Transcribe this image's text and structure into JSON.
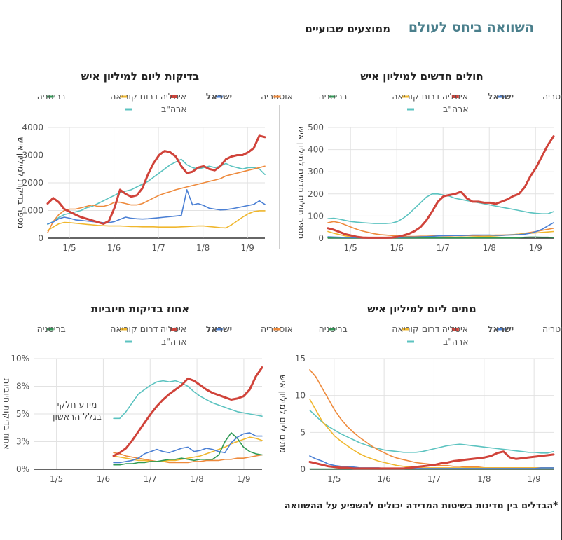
{
  "page": {
    "title": "השוואה ביחס לעולם",
    "subtitle": "ממוצעים שבועיים",
    "footnote": "*הבדלים בין מדינות בשיטות המדידה יכולים להשפיע על ההשוואה"
  },
  "colors": {
    "austria": "#4a7fd4",
    "israel": "#d0433a",
    "italy": "#f0b72e",
    "korea": "#2f9a55",
    "britain": "#ee8a3c",
    "usa": "#5cc3c0",
    "grid": "#e2e2e2",
    "axis": "#333333"
  },
  "chart_data": [
    {
      "id": "tests",
      "type": "line",
      "title": "בדיקות ליום למיליון איש",
      "ylabel": "מספר בדיקות למיליון איש",
      "ylim": [
        0,
        4000
      ],
      "yticks": [
        "0",
        "1000",
        "2000",
        "3000",
        "4000"
      ],
      "xticks": [
        "1/5",
        "1/6",
        "1/7",
        "1/8",
        "1/9"
      ],
      "legend": [
        "אוסטריה",
        "ישראל",
        "איטליה",
        "דרום קוריאה",
        "בריטניה",
        "ארה\"ב"
      ],
      "series": [
        {
          "name": "אוסטריה",
          "key": "austria",
          "values": [
            520,
            580,
            700,
            760,
            720,
            660,
            640,
            620,
            600,
            580,
            560,
            560,
            600,
            680,
            760,
            720,
            700,
            690,
            700,
            720,
            740,
            760,
            780,
            800,
            820,
            1750,
            1200,
            1250,
            1180,
            1080,
            1050,
            1020,
            1030,
            1060,
            1100,
            1140,
            1180,
            1220,
            1350,
            1220
          ]
        },
        {
          "name": "ישראל",
          "key": "israel",
          "values": [
            1250,
            1450,
            1300,
            1050,
            950,
            850,
            760,
            700,
            640,
            580,
            520,
            620,
            1100,
            1750,
            1600,
            1500,
            1550,
            1800,
            2300,
            2700,
            3000,
            3150,
            3100,
            2950,
            2600,
            2350,
            2400,
            2550,
            2600,
            2500,
            2450,
            2600,
            2850,
            2950,
            3000,
            3000,
            3100,
            3250,
            3700,
            3650
          ]
        },
        {
          "name": "איטליה",
          "key": "italy",
          "values": [
            280,
            400,
            520,
            570,
            560,
            540,
            520,
            500,
            480,
            460,
            450,
            440,
            440,
            440,
            430,
            420,
            420,
            410,
            410,
            410,
            400,
            400,
            400,
            400,
            410,
            420,
            430,
            440,
            440,
            420,
            400,
            380,
            370,
            480,
            620,
            760,
            880,
            960,
            990,
            990
          ]
        },
        {
          "name": "דרום קוריאה",
          "key": "korea",
          "values": []
        },
        {
          "name": "בריטניה",
          "key": "britain",
          "values": [
            200,
            600,
            850,
            1000,
            1050,
            1050,
            1100,
            1150,
            1200,
            1150,
            1150,
            1200,
            1300,
            1300,
            1250,
            1200,
            1200,
            1250,
            1350,
            1450,
            1550,
            1620,
            1680,
            1750,
            1800,
            1850,
            1900,
            1950,
            2000,
            2050,
            2100,
            2150,
            2250,
            2300,
            2350,
            2400,
            2450,
            2500,
            2550,
            2600
          ]
        },
        {
          "name": "ארה\"ב",
          "key": "usa",
          "values": [
            500,
            600,
            750,
            850,
            900,
            950,
            1000,
            1100,
            1150,
            1250,
            1350,
            1450,
            1550,
            1650,
            1700,
            1750,
            1850,
            1950,
            2050,
            2200,
            2350,
            2500,
            2650,
            2750,
            2850,
            2650,
            2550,
            2500,
            2550,
            2600,
            2550,
            2600,
            2700,
            2600,
            2550,
            2500,
            2550,
            2550,
            2500,
            2300
          ]
        }
      ]
    },
    {
      "id": "cases",
      "type": "line",
      "title": "חולים חדשים למיליון איש",
      "ylabel": "מספר חולים חדשים למיליון איש",
      "ylim": [
        0,
        500
      ],
      "yticks": [
        "0",
        "100",
        "200",
        "300",
        "400",
        "500"
      ],
      "xticks": [
        "1/5",
        "1/6",
        "1/7",
        "1/8",
        "1/9"
      ],
      "legend": [
        "אוסטריה",
        "ישראל",
        "איטליה",
        "דרום קוריאה",
        "בריטניה",
        "ארה\"ב"
      ],
      "series": [
        {
          "name": "אוסטריה",
          "key": "austria",
          "values": [
            6,
            5,
            4,
            3,
            3,
            3,
            2,
            2,
            2,
            2,
            2,
            2,
            3,
            4,
            5,
            5,
            6,
            7,
            8,
            10,
            11,
            12,
            12,
            12,
            13,
            14,
            14,
            14,
            14,
            13,
            13,
            14,
            15,
            16,
            18,
            22,
            30,
            40,
            55,
            70
          ]
        },
        {
          "name": "ישראל",
          "key": "israel",
          "values": [
            45,
            38,
            28,
            18,
            12,
            6,
            3,
            2,
            2,
            2,
            2,
            3,
            6,
            12,
            20,
            32,
            50,
            80,
            120,
            165,
            190,
            195,
            200,
            210,
            180,
            165,
            165,
            160,
            160,
            155,
            165,
            175,
            190,
            200,
            230,
            280,
            320,
            370,
            420,
            460
          ]
        },
        {
          "name": "איטליה",
          "key": "italy",
          "values": [
            30,
            22,
            16,
            10,
            7,
            5,
            4,
            3,
            3,
            3,
            3,
            3,
            3,
            3,
            3,
            3,
            3,
            3,
            3,
            4,
            4,
            4,
            4,
            5,
            5,
            6,
            7,
            8,
            9,
            10,
            12,
            14,
            16,
            18,
            20,
            22,
            24,
            26,
            28,
            30
          ]
        },
        {
          "name": "דרום קוריאה",
          "key": "korea",
          "values": [
            1,
            1,
            1,
            1,
            1,
            1,
            1,
            1,
            1,
            1,
            1,
            1,
            1,
            1,
            1,
            1,
            1,
            1,
            1,
            1,
            1,
            1,
            1,
            1,
            1,
            1,
            1,
            1,
            1,
            1,
            1,
            1,
            1,
            2,
            4,
            5,
            5,
            4,
            4,
            3
          ]
        },
        {
          "name": "בריטניה",
          "key": "britain",
          "values": [
            70,
            75,
            70,
            60,
            50,
            40,
            32,
            26,
            20,
            16,
            14,
            12,
            10,
            9,
            8,
            8,
            9,
            9,
            10,
            10,
            10,
            10,
            11,
            11,
            12,
            12,
            12,
            13,
            13,
            14,
            14,
            15,
            16,
            18,
            22,
            26,
            30,
            35,
            40,
            45
          ]
        },
        {
          "name": "ארה\"ב",
          "key": "usa",
          "values": [
            88,
            90,
            86,
            80,
            75,
            72,
            70,
            68,
            66,
            66,
            66,
            68,
            75,
            90,
            110,
            135,
            160,
            185,
            200,
            200,
            195,
            190,
            180,
            175,
            170,
            165,
            160,
            155,
            150,
            145,
            140,
            135,
            130,
            125,
            120,
            115,
            112,
            110,
            110,
            120
          ]
        }
      ]
    },
    {
      "id": "positivity",
      "type": "line",
      "title": "אחוז בדיקות חיוביות",
      "ylabel": "אחוז בדיקות חיוביות",
      "ylim": [
        0,
        10
      ],
      "yticks": [
        "0%",
        "3%",
        "5%",
        "8%",
        "10%"
      ],
      "xticks": [
        "1/5",
        "1/6",
        "1/7",
        "1/8",
        "1/9"
      ],
      "legend": [
        "אוסטריה",
        "ישראל",
        "איטליה",
        "דרום קוריאה",
        "בריטניה",
        "ארה\"ב"
      ],
      "annotation": [
        "מידע חלקי",
        "בגלל הראשון"
      ],
      "x_start_fraction": 0.35,
      "series": [
        {
          "name": "אוסטריה",
          "key": "austria",
          "values": [
            0.6,
            0.6,
            0.7,
            0.8,
            1.0,
            1.4,
            1.6,
            1.8,
            1.6,
            1.5,
            1.7,
            1.9,
            2.0,
            1.6,
            1.7,
            1.9,
            1.8,
            1.6,
            1.5,
            2.4,
            2.9,
            3.2,
            3.3,
            3.0,
            3.0
          ]
        },
        {
          "name": "ישראל",
          "key": "israel",
          "values": [
            1.2,
            1.5,
            1.9,
            2.6,
            3.4,
            4.2,
            5.0,
            5.7,
            6.3,
            6.8,
            7.2,
            7.6,
            8.2,
            8.0,
            7.6,
            7.2,
            6.9,
            6.7,
            6.5,
            6.3,
            6.4,
            6.6,
            7.2,
            8.4,
            9.2
          ]
        },
        {
          "name": "איטליה",
          "key": "italy",
          "values": [
            1.2,
            1.1,
            1.0,
            0.9,
            0.8,
            0.8,
            0.7,
            0.7,
            0.7,
            0.8,
            0.8,
            0.9,
            1.0,
            1.1,
            1.2,
            1.4,
            1.6,
            1.8,
            2.0,
            2.3,
            2.5,
            2.7,
            2.9,
            2.8,
            2.6
          ]
        },
        {
          "name": "דרום קוריאה",
          "key": "korea",
          "values": [
            0.4,
            0.4,
            0.5,
            0.5,
            0.6,
            0.6,
            0.7,
            0.7,
            0.8,
            0.9,
            0.9,
            1.0,
            0.9,
            0.8,
            0.9,
            0.9,
            0.9,
            1.3,
            2.5,
            3.3,
            2.8,
            2.0,
            1.6,
            1.4,
            1.3
          ]
        },
        {
          "name": "בריטניה",
          "key": "britain",
          "values": [
            1.5,
            1.4,
            1.2,
            1.1,
            1.0,
            0.9,
            0.8,
            0.7,
            0.7,
            0.6,
            0.6,
            0.6,
            0.6,
            0.7,
            0.7,
            0.8,
            0.8,
            0.8,
            0.9,
            0.9,
            1.0,
            1.0,
            1.1,
            1.2,
            1.3
          ]
        },
        {
          "name": "ארה\"ב",
          "key": "usa",
          "values": [
            4.6,
            4.6,
            5.2,
            6.0,
            6.8,
            7.2,
            7.6,
            7.9,
            8.0,
            7.9,
            8.0,
            7.8,
            7.5,
            7.0,
            6.6,
            6.3,
            6.0,
            5.8,
            5.6,
            5.4,
            5.2,
            5.1,
            5.0,
            4.9,
            4.8
          ]
        }
      ]
    },
    {
      "id": "deaths",
      "type": "line",
      "title": "מתים ליום למיליון איש",
      "ylabel": "מתים ליום למיליון איש",
      "ylim": [
        0,
        15
      ],
      "yticks": [
        "0",
        "5",
        "10",
        "15"
      ],
      "xticks": [
        "1/5",
        "1/6",
        "1/7",
        "1/8",
        "1/9"
      ],
      "legend": [
        "אוסטריה",
        "ישראל",
        "איטליה",
        "דרום קוריאה",
        "בריטניה",
        "ארה\"ב"
      ],
      "series": [
        {
          "name": "אוסטריה",
          "key": "austria",
          "values": [
            1.8,
            1.4,
            1.1,
            0.7,
            0.5,
            0.4,
            0.3,
            0.3,
            0.2,
            0.2,
            0.2,
            0.2,
            0.1,
            0.1,
            0.1,
            0.1,
            0.1,
            0.1,
            0.1,
            0.1,
            0.1,
            0.1,
            0.1,
            0.1,
            0.1,
            0.1,
            0.1,
            0.1,
            0.1,
            0.1,
            0.1,
            0.1,
            0.1,
            0.1,
            0.1,
            0.1,
            0.1,
            0.2,
            0.2,
            0.2
          ]
        },
        {
          "name": "ישראל",
          "key": "israel",
          "values": [
            1.0,
            0.8,
            0.6,
            0.4,
            0.3,
            0.2,
            0.2,
            0.1,
            0.1,
            0.1,
            0.1,
            0.1,
            0.1,
            0.1,
            0.1,
            0.1,
            0.2,
            0.3,
            0.4,
            0.5,
            0.6,
            0.8,
            0.9,
            1.1,
            1.2,
            1.3,
            1.4,
            1.5,
            1.6,
            1.8,
            2.2,
            2.4,
            1.6,
            1.4,
            1.5,
            1.6,
            1.7,
            1.8,
            1.9,
            2.0
          ]
        },
        {
          "name": "איטליה",
          "key": "italy",
          "values": [
            9.5,
            8.0,
            6.5,
            5.5,
            4.5,
            3.8,
            3.2,
            2.6,
            2.1,
            1.7,
            1.4,
            1.1,
            0.9,
            0.7,
            0.5,
            0.4,
            0.3,
            0.3,
            0.2,
            0.2,
            0.2,
            0.2,
            0.2,
            0.2,
            0.2,
            0.2,
            0.2,
            0.2,
            0.2,
            0.2,
            0.2,
            0.2,
            0.2,
            0.2,
            0.2,
            0.2,
            0.2,
            0.2,
            0.2,
            0.2
          ]
        },
        {
          "name": "דרום קוריאה",
          "key": "korea",
          "values": [
            0.05,
            0.05,
            0.05,
            0.05,
            0.05,
            0.05,
            0.05,
            0.05,
            0.05,
            0.05,
            0.05,
            0.05,
            0.05,
            0.05,
            0.05,
            0.05,
            0.05,
            0.05,
            0.05,
            0.05,
            0.05,
            0.05,
            0.05,
            0.05,
            0.05,
            0.05,
            0.05,
            0.05,
            0.05,
            0.05,
            0.05,
            0.05,
            0.05,
            0.05,
            0.05,
            0.05,
            0.05,
            0.05,
            0.05,
            0.05
          ]
        },
        {
          "name": "בריטניה",
          "key": "britain",
          "values": [
            13.5,
            12.5,
            11.0,
            9.5,
            8.0,
            6.8,
            5.8,
            5.0,
            4.3,
            3.7,
            3.1,
            2.6,
            2.2,
            1.8,
            1.5,
            1.3,
            1.1,
            0.9,
            0.8,
            0.7,
            0.6,
            0.5,
            0.5,
            0.4,
            0.4,
            0.3,
            0.3,
            0.3,
            0.2,
            0.2,
            0.2,
            0.2,
            0.2,
            0.2,
            0.2,
            0.2,
            0.2,
            0.2,
            0.2,
            0.2
          ]
        },
        {
          "name": "ארה\"ב",
          "key": "usa",
          "values": [
            8.0,
            7.2,
            6.4,
            5.8,
            5.3,
            4.8,
            4.4,
            4.0,
            3.6,
            3.3,
            3.0,
            2.8,
            2.6,
            2.5,
            2.4,
            2.3,
            2.3,
            2.3,
            2.4,
            2.6,
            2.8,
            3.0,
            3.2,
            3.3,
            3.4,
            3.3,
            3.2,
            3.1,
            3.0,
            2.9,
            2.8,
            2.7,
            2.6,
            2.5,
            2.4,
            2.3,
            2.3,
            2.2,
            2.2,
            2.4
          ]
        }
      ]
    }
  ]
}
